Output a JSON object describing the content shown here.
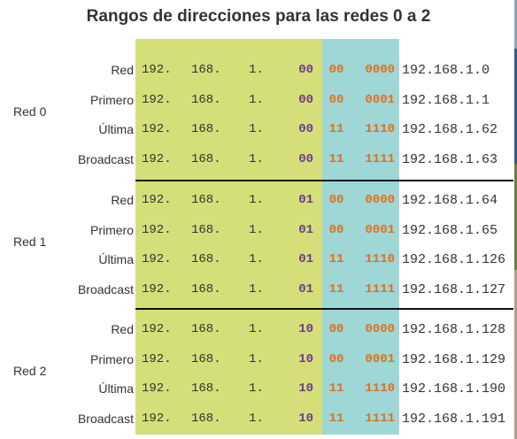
{
  "title": "Rangos de direcciones para las redes 0 a 2",
  "colors": {
    "green": "#d4df7a",
    "teal": "#9fd6d6",
    "purple": "#6d3a8a",
    "orange": "#e0701b"
  },
  "groups": [
    {
      "label": "Red 0",
      "rows": [
        {
          "label": "Red",
          "o1": "192.",
          "o2": "168.",
          "o3": "1.",
          "b1": "00",
          "b2": "00",
          "b3": "0000",
          "result": "192.168.1.0"
        },
        {
          "label": "Primero",
          "o1": "192.",
          "o2": "168.",
          "o3": "1.",
          "b1": "00",
          "b2": "00",
          "b3": "0001",
          "result": "192.168.1.1"
        },
        {
          "label": "Última",
          "o1": "192.",
          "o2": "168.",
          "o3": "1.",
          "b1": "00",
          "b2": "11",
          "b3": "1110",
          "result": "192.168.1.62"
        },
        {
          "label": "Broadcast",
          "o1": "192.",
          "o2": "168.",
          "o3": "1.",
          "b1": "00",
          "b2": "11",
          "b3": "1111",
          "result": "192.168.1.63"
        }
      ]
    },
    {
      "label": "Red 1",
      "rows": [
        {
          "label": "Red",
          "o1": "192.",
          "o2": "168.",
          "o3": "1.",
          "b1": "01",
          "b2": "00",
          "b3": "0000",
          "result": "192.168.1.64"
        },
        {
          "label": "Primero",
          "o1": "192.",
          "o2": "168.",
          "o3": "1.",
          "b1": "01",
          "b2": "00",
          "b3": "0001",
          "result": "192.168.1.65"
        },
        {
          "label": "Última",
          "o1": "192.",
          "o2": "168.",
          "o3": "1.",
          "b1": "01",
          "b2": "11",
          "b3": "1110",
          "result": "192.168.1.126"
        },
        {
          "label": "Broadcast",
          "o1": "192.",
          "o2": "168.",
          "o3": "1.",
          "b1": "01",
          "b2": "11",
          "b3": "1111",
          "result": "192.168.1.127"
        }
      ]
    },
    {
      "label": "Red 2",
      "rows": [
        {
          "label": "Red",
          "o1": "192.",
          "o2": "168.",
          "o3": "1.",
          "b1": "10",
          "b2": "00",
          "b3": "0000",
          "result": "192.168.1.128"
        },
        {
          "label": "Primero",
          "o1": "192.",
          "o2": "168.",
          "o3": "1.",
          "b1": "10",
          "b2": "00",
          "b3": "0001",
          "result": "192.168.1.129"
        },
        {
          "label": "Última",
          "o1": "192.",
          "o2": "168.",
          "o3": "1.",
          "b1": "10",
          "b2": "11",
          "b3": "1110",
          "result": "192.168.1.190"
        },
        {
          "label": "Broadcast",
          "o1": "192.",
          "o2": "168.",
          "o3": "1.",
          "b1": "10",
          "b2": "11",
          "b3": "1111",
          "result": "192.168.1.191"
        }
      ]
    }
  ]
}
